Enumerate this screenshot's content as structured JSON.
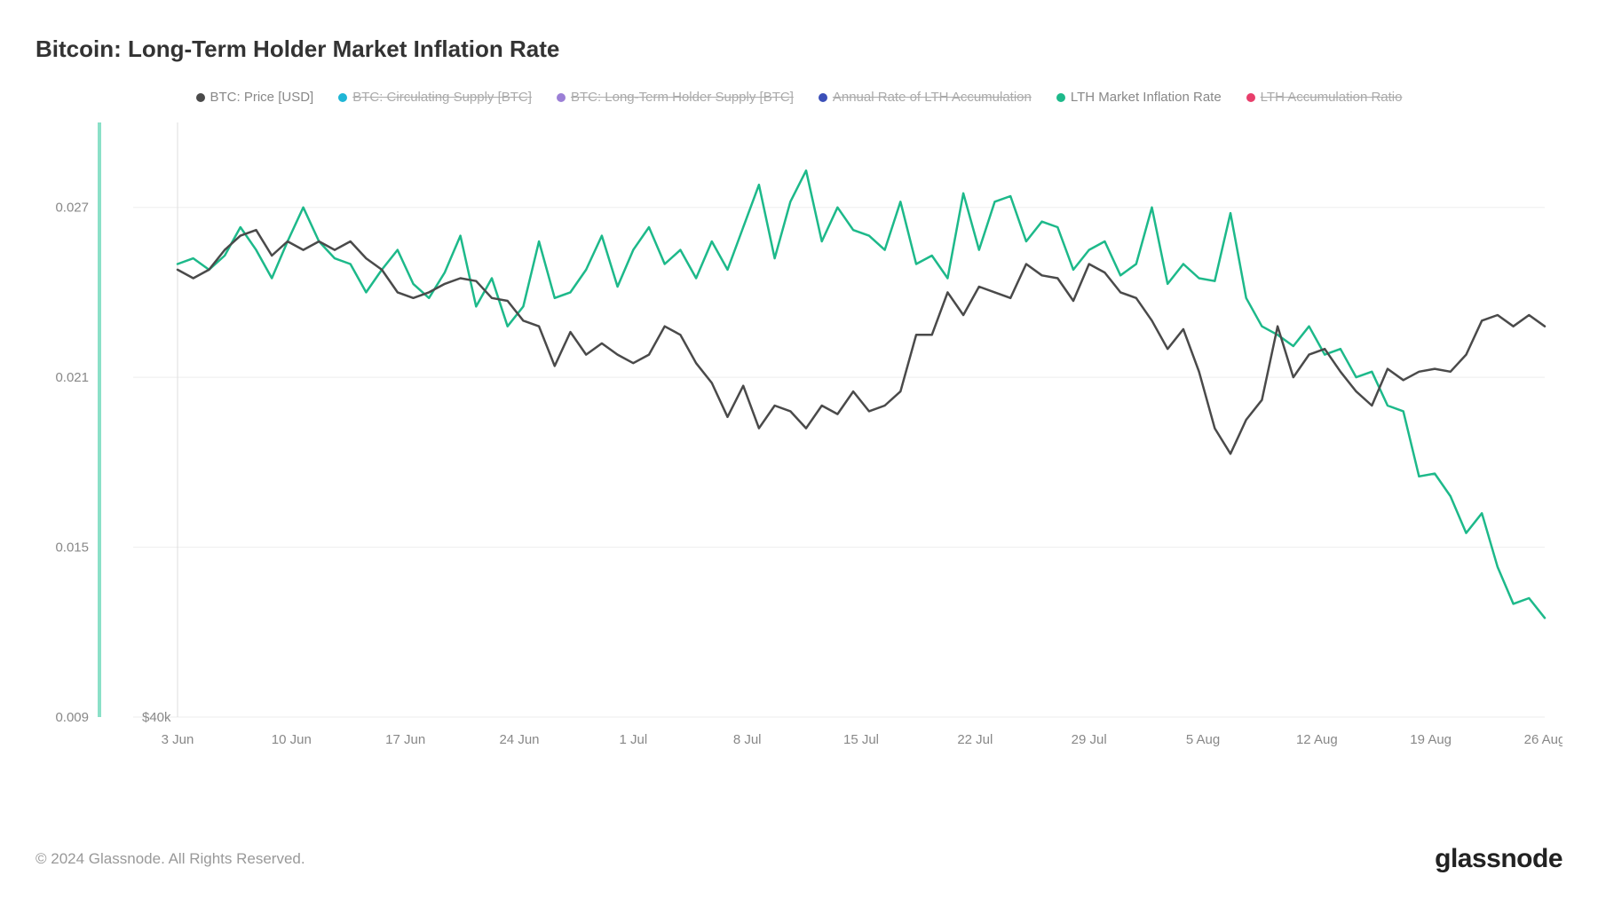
{
  "title": "Bitcoin: Long-Term Holder Market Inflation Rate",
  "copyright": "© 2024 Glassnode. All Rights Reserved.",
  "brand": "glassnode",
  "legend": [
    {
      "label": "BTC: Price [USD]",
      "color": "#4a4a4a",
      "dimmed": false
    },
    {
      "label": "BTC: Circulating Supply [BTC]",
      "color": "#1fb6d6",
      "dimmed": true
    },
    {
      "label": "BTC: Long-Term Holder Supply [BTC]",
      "color": "#9b7fd6",
      "dimmed": true
    },
    {
      "label": "Annual Rate of LTH Accumulation",
      "color": "#3b4fb8",
      "dimmed": true
    },
    {
      "label": "LTH Market Inflation Rate",
      "color": "#1db98a",
      "dimmed": false
    },
    {
      "label": "LTH Accumulation Ratio",
      "color": "#e83e6b",
      "dimmed": true
    }
  ],
  "chart": {
    "type": "line",
    "background_color": "#ffffff",
    "grid_color": "#eeeeee",
    "y_axis_left": {
      "min": 0.009,
      "max": 0.03,
      "ticks": [
        0.009,
        0.015,
        0.021,
        0.027
      ],
      "tick_labels": [
        "0.009",
        "0.015",
        "0.021",
        "0.027"
      ],
      "bar_color": "#8be0c8"
    },
    "y_axis_right_label": "$40k",
    "x_axis": {
      "ticks": [
        "3 Jun",
        "10 Jun",
        "17 Jun",
        "24 Jun",
        "1 Jul",
        "8 Jul",
        "15 Jul",
        "22 Jul",
        "29 Jul",
        "5 Aug",
        "12 Aug",
        "19 Aug",
        "26 Aug"
      ]
    },
    "series": [
      {
        "name": "LTH Market Inflation Rate",
        "color": "#1db98a",
        "line_width": 2.5,
        "data": [
          0.025,
          0.0252,
          0.0248,
          0.0253,
          0.0263,
          0.0255,
          0.0245,
          0.0258,
          0.027,
          0.0258,
          0.0252,
          0.025,
          0.024,
          0.0248,
          0.0255,
          0.0243,
          0.0238,
          0.0247,
          0.026,
          0.0235,
          0.0245,
          0.0228,
          0.0235,
          0.0258,
          0.0238,
          0.024,
          0.0248,
          0.026,
          0.0242,
          0.0255,
          0.0263,
          0.025,
          0.0255,
          0.0245,
          0.0258,
          0.0248,
          0.0263,
          0.0278,
          0.0252,
          0.0272,
          0.0283,
          0.0258,
          0.027,
          0.0262,
          0.026,
          0.0255,
          0.0272,
          0.025,
          0.0253,
          0.0245,
          0.0275,
          0.0255,
          0.0272,
          0.0274,
          0.0258,
          0.0265,
          0.0263,
          0.0248,
          0.0255,
          0.0258,
          0.0246,
          0.025,
          0.027,
          0.0243,
          0.025,
          0.0245,
          0.0244,
          0.0268,
          0.0238,
          0.0228,
          0.0225,
          0.0221,
          0.0228,
          0.0218,
          0.022,
          0.021,
          0.0212,
          0.02,
          0.0198,
          0.0175,
          0.0176,
          0.0168,
          0.0155,
          0.0162,
          0.0143,
          0.013,
          0.0132,
          0.0125
        ]
      },
      {
        "name": "BTC: Price [USD]",
        "color": "#4a4a4a",
        "line_width": 2.5,
        "data": [
          0.0248,
          0.0245,
          0.0248,
          0.0255,
          0.026,
          0.0262,
          0.0253,
          0.0258,
          0.0255,
          0.0258,
          0.0255,
          0.0258,
          0.0252,
          0.0248,
          0.024,
          0.0238,
          0.024,
          0.0243,
          0.0245,
          0.0244,
          0.0238,
          0.0237,
          0.023,
          0.0228,
          0.0214,
          0.0226,
          0.0218,
          0.0222,
          0.0218,
          0.0215,
          0.0218,
          0.0228,
          0.0225,
          0.0215,
          0.0208,
          0.0196,
          0.0207,
          0.0192,
          0.02,
          0.0198,
          0.0192,
          0.02,
          0.0197,
          0.0205,
          0.0198,
          0.02,
          0.0205,
          0.0225,
          0.0225,
          0.024,
          0.0232,
          0.0242,
          0.024,
          0.0238,
          0.025,
          0.0246,
          0.0245,
          0.0237,
          0.025,
          0.0247,
          0.024,
          0.0238,
          0.023,
          0.022,
          0.0227,
          0.0212,
          0.0192,
          0.0183,
          0.0195,
          0.0202,
          0.0228,
          0.021,
          0.0218,
          0.022,
          0.0212,
          0.0205,
          0.02,
          0.0213,
          0.0209,
          0.0212,
          0.0213,
          0.0212,
          0.0218,
          0.023,
          0.0232,
          0.0228,
          0.0232,
          0.0228
        ]
      }
    ],
    "label_fontsize": 15,
    "title_fontsize": 26
  }
}
